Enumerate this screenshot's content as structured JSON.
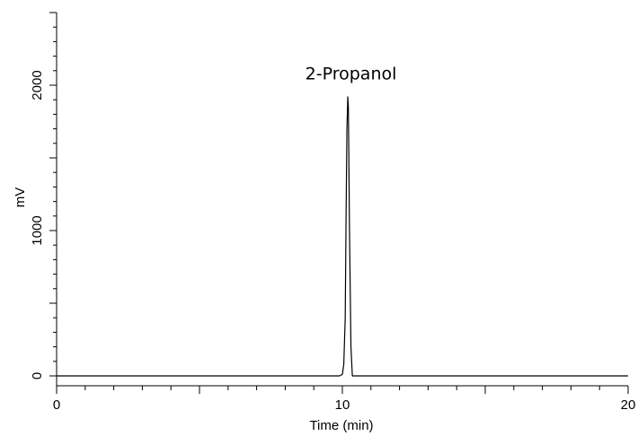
{
  "chart_data": {
    "type": "line",
    "xlabel": "Time (min)",
    "ylabel": "mV",
    "xlim": [
      0,
      20
    ],
    "ylim": [
      -50,
      2500
    ],
    "x_ticks": [
      0,
      10,
      20
    ],
    "y_ticks": [
      0,
      1000,
      2000
    ],
    "x_tick_labels": [
      "0",
      "10",
      "20"
    ],
    "y_tick_labels": [
      "0",
      "1000",
      "2000"
    ],
    "grid": false,
    "legend": "none",
    "line_color": "#000000",
    "series": [
      {
        "x": [
          0,
          9.9,
          10.0,
          10.05,
          10.1,
          10.13,
          10.16,
          10.19,
          10.21,
          10.25,
          10.3,
          10.35,
          20
        ],
        "y": [
          0,
          0,
          10,
          80,
          400,
          1100,
          1700,
          1920,
          1850,
          1000,
          200,
          0,
          0
        ]
      }
    ],
    "annotations": [
      {
        "text": "2-Propanol",
        "x": 10.3,
        "y": 2040
      }
    ]
  }
}
